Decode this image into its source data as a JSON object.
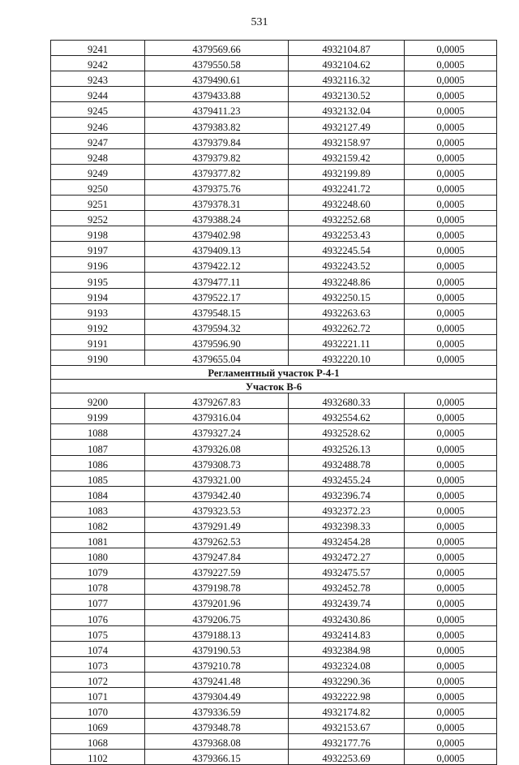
{
  "page_number": "531",
  "rows_part1": [
    [
      "9241",
      "4379569.66",
      "4932104.87",
      "0,0005"
    ],
    [
      "9242",
      "4379550.58",
      "4932104.62",
      "0,0005"
    ],
    [
      "9243",
      "4379490.61",
      "4932116.32",
      "0,0005"
    ],
    [
      "9244",
      "4379433.88",
      "4932130.52",
      "0,0005"
    ],
    [
      "9245",
      "4379411.23",
      "4932132.04",
      "0,0005"
    ],
    [
      "9246",
      "4379383.82",
      "4932127.49",
      "0,0005"
    ],
    [
      "9247",
      "4379379.84",
      "4932158.97",
      "0,0005"
    ],
    [
      "9248",
      "4379379.82",
      "4932159.42",
      "0,0005"
    ],
    [
      "9249",
      "4379377.82",
      "4932199.89",
      "0,0005"
    ],
    [
      "9250",
      "4379375.76",
      "4932241.72",
      "0,0005"
    ],
    [
      "9251",
      "4379378.31",
      "4932248.60",
      "0,0005"
    ],
    [
      "9252",
      "4379388.24",
      "4932252.68",
      "0,0005"
    ],
    [
      "9198",
      "4379402.98",
      "4932253.43",
      "0,0005"
    ],
    [
      "9197",
      "4379409.13",
      "4932245.54",
      "0,0005"
    ],
    [
      "9196",
      "4379422.12",
      "4932243.52",
      "0,0005"
    ],
    [
      "9195",
      "4379477.11",
      "4932248.86",
      "0,0005"
    ],
    [
      "9194",
      "4379522.17",
      "4932250.15",
      "0,0005"
    ],
    [
      "9193",
      "4379548.15",
      "4932263.63",
      "0,0005"
    ],
    [
      "9192",
      "4379594.32",
      "4932262.72",
      "0,0005"
    ],
    [
      "9191",
      "4379596.90",
      "4932221.11",
      "0,0005"
    ],
    [
      "9190",
      "4379655.04",
      "4932220.10",
      "0,0005"
    ]
  ],
  "section_title": "Регламентный участок Р-4-1",
  "subsection_title": "Участок В-6",
  "rows_part2": [
    [
      "9200",
      "4379267.83",
      "4932680.33",
      "0,0005"
    ],
    [
      "9199",
      "4379316.04",
      "4932554.62",
      "0,0005"
    ],
    [
      "1088",
      "4379327.24",
      "4932528.62",
      "0,0005"
    ],
    [
      "1087",
      "4379326.08",
      "4932526.13",
      "0,0005"
    ],
    [
      "1086",
      "4379308.73",
      "4932488.78",
      "0,0005"
    ],
    [
      "1085",
      "4379321.00",
      "4932455.24",
      "0,0005"
    ],
    [
      "1084",
      "4379342.40",
      "4932396.74",
      "0,0005"
    ],
    [
      "1083",
      "4379323.53",
      "4932372.23",
      "0,0005"
    ],
    [
      "1082",
      "4379291.49",
      "4932398.33",
      "0,0005"
    ],
    [
      "1081",
      "4379262.53",
      "4932454.28",
      "0,0005"
    ],
    [
      "1080",
      "4379247.84",
      "4932472.27",
      "0,0005"
    ],
    [
      "1079",
      "4379227.59",
      "4932475.57",
      "0,0005"
    ],
    [
      "1078",
      "4379198.78",
      "4932452.78",
      "0,0005"
    ],
    [
      "1077",
      "4379201.96",
      "4932439.74",
      "0,0005"
    ],
    [
      "1076",
      "4379206.75",
      "4932430.86",
      "0,0005"
    ],
    [
      "1075",
      "4379188.13",
      "4932414.83",
      "0,0005"
    ],
    [
      "1074",
      "4379190.53",
      "4932384.98",
      "0,0005"
    ],
    [
      "1073",
      "4379210.78",
      "4932324.08",
      "0,0005"
    ],
    [
      "1072",
      "4379241.48",
      "4932290.36",
      "0,0005"
    ],
    [
      "1071",
      "4379304.49",
      "4932222.98",
      "0,0005"
    ],
    [
      "1070",
      "4379336.59",
      "4932174.82",
      "0,0005"
    ],
    [
      "1069",
      "4379348.78",
      "4932153.67",
      "0,0005"
    ],
    [
      "1068",
      "4379368.08",
      "4932177.76",
      "0,0005"
    ],
    [
      "1102",
      "4379366.15",
      "4932253.69",
      "0,0005"
    ]
  ]
}
